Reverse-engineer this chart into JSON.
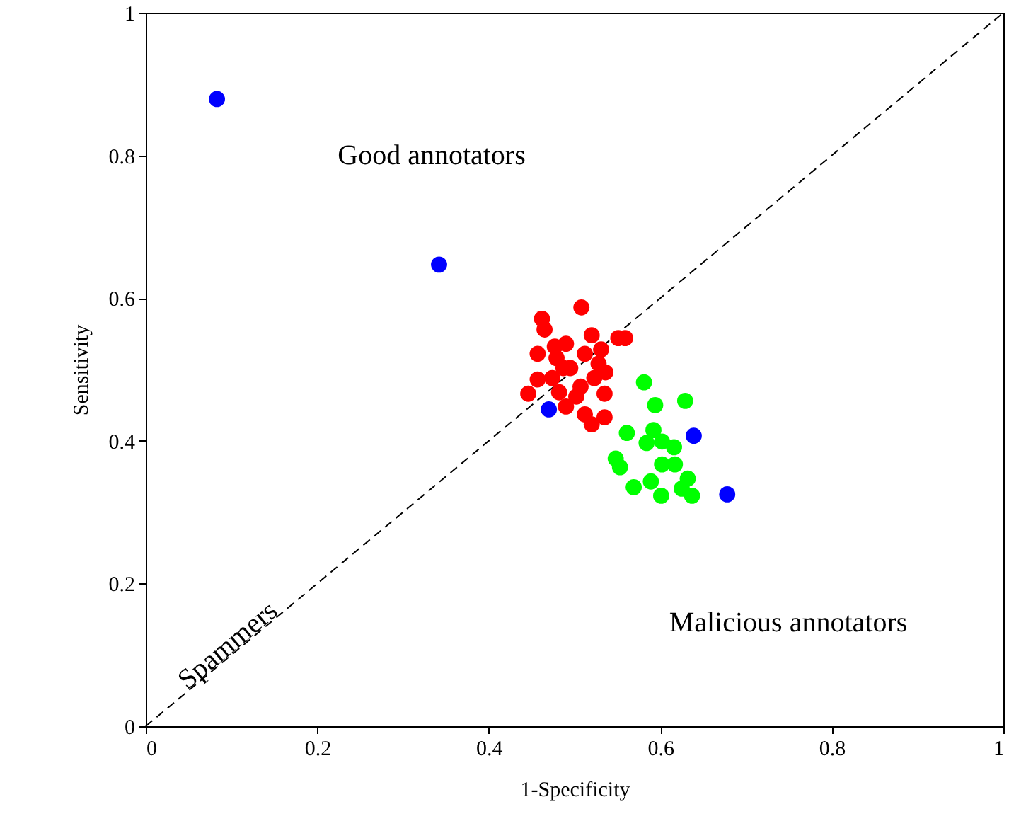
{
  "chart_data": {
    "type": "scatter",
    "xlabel": "1-Specificity",
    "ylabel": "Sensitivity",
    "xlim": [
      0,
      1
    ],
    "ylim": [
      0,
      1
    ],
    "xticks": [
      0,
      0.2,
      0.4,
      0.6,
      0.8,
      1
    ],
    "yticks": [
      0,
      0.2,
      0.4,
      0.6,
      0.8,
      1
    ],
    "grid": false,
    "annotations": [
      "Good annotators",
      "Spammers",
      "Malicious annotators"
    ],
    "series": [
      {
        "type": "line",
        "color": "#000000",
        "line_style": "dashed",
        "marker": "none",
        "x": [
          0,
          1
        ],
        "values": [
          0,
          1
        ]
      },
      {
        "color": "#ff0000",
        "x": [
          0.508,
          0.462,
          0.465,
          0.52,
          0.559,
          0.551,
          0.457,
          0.49,
          0.531,
          0.479,
          0.528,
          0.457,
          0.446,
          0.535,
          0.49,
          0.512,
          0.535,
          0.52,
          0.474,
          0.507,
          0.495,
          0.523,
          0.502,
          0.482,
          0.477,
          0.512,
          0.536,
          0.487
        ],
        "values": [
          0.587,
          0.571,
          0.556,
          0.548,
          0.544,
          0.544,
          0.522,
          0.536,
          0.528,
          0.516,
          0.508,
          0.486,
          0.466,
          0.466,
          0.448,
          0.437,
          0.433,
          0.423,
          0.488,
          0.476,
          0.502,
          0.488,
          0.462,
          0.468,
          0.532,
          0.522,
          0.496,
          0.502
        ]
      },
      {
        "color": "#00ff00",
        "x": [
          0.581,
          0.594,
          0.629,
          0.561,
          0.592,
          0.584,
          0.602,
          0.616,
          0.548,
          0.553,
          0.602,
          0.617,
          0.569,
          0.589,
          0.601,
          0.632,
          0.625,
          0.637
        ],
        "values": [
          0.482,
          0.45,
          0.456,
          0.411,
          0.415,
          0.397,
          0.399,
          0.391,
          0.375,
          0.363,
          0.367,
          0.367,
          0.335,
          0.343,
          0.323,
          0.347,
          0.333,
          0.323
        ]
      },
      {
        "color": "#0000ff",
        "x": [
          0.083,
          0.342,
          0.47,
          0.639,
          0.678
        ],
        "values": [
          0.879,
          0.647,
          0.444,
          0.407,
          0.325
        ]
      }
    ]
  }
}
